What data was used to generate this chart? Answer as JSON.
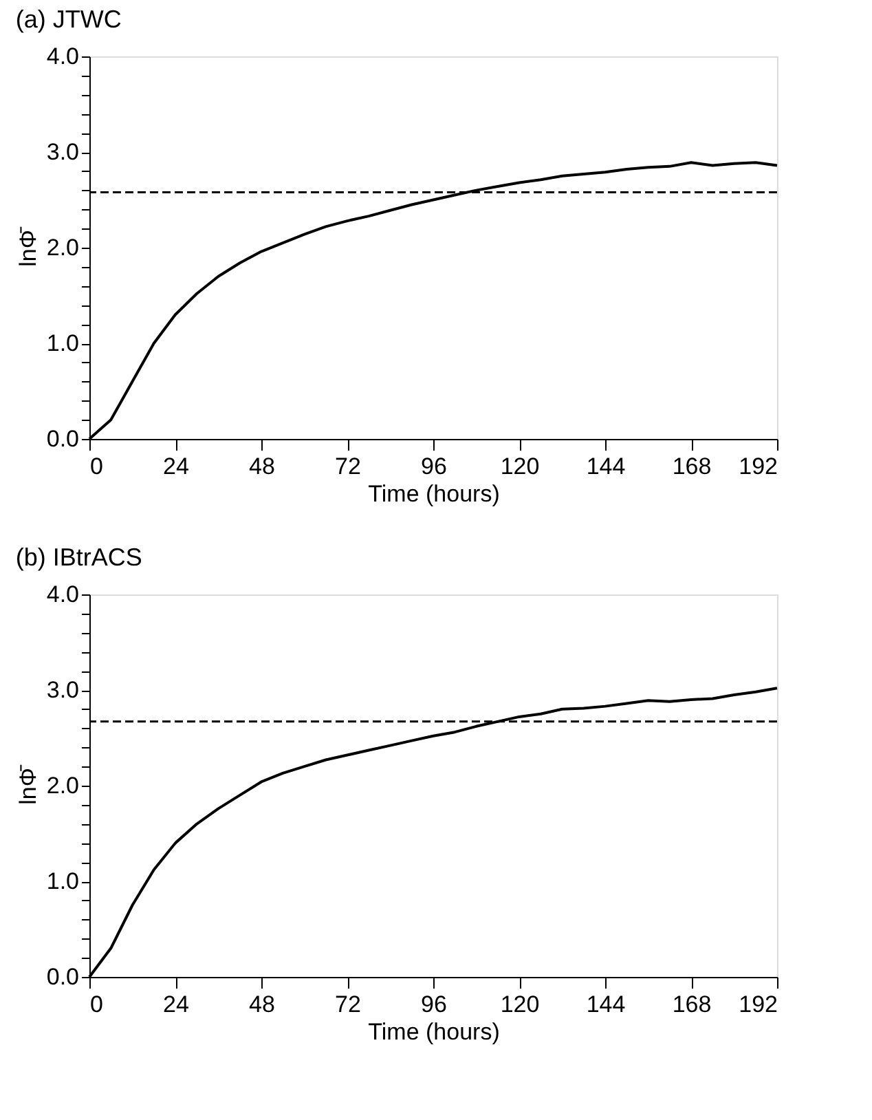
{
  "chart_data": [
    {
      "type": "line",
      "title": "(a) JTWC",
      "xlabel": "Time (hours)",
      "ylabel": "lnΦ̄",
      "xlim": [
        0,
        192
      ],
      "xticks": [
        0,
        24,
        48,
        72,
        96,
        120,
        144,
        168,
        192
      ],
      "ylim": [
        0,
        4
      ],
      "yticks": [
        {
          "value": 0,
          "label": "0.0"
        },
        {
          "value": 0.2,
          "label": null
        },
        {
          "value": 0.4,
          "label": null
        },
        {
          "value": 0.6,
          "label": null
        },
        {
          "value": 0.8,
          "label": null
        },
        {
          "value": 1,
          "label": "1.0"
        },
        {
          "value": 1.2,
          "label": null
        },
        {
          "value": 1.4,
          "label": null
        },
        {
          "value": 1.6,
          "label": null
        },
        {
          "value": 1.8,
          "label": null
        },
        {
          "value": 2,
          "label": "2.0"
        },
        {
          "value": 2.2,
          "label": null
        },
        {
          "value": 2.4,
          "label": null
        },
        {
          "value": 2.6,
          "label": null
        },
        {
          "value": 2.8,
          "label": null
        },
        {
          "value": 3,
          "label": "3.0"
        },
        {
          "value": 3.2,
          "label": null
        },
        {
          "value": 3.4,
          "label": null
        },
        {
          "value": 3.6,
          "label": null
        },
        {
          "value": 3.8,
          "label": null
        },
        {
          "value": 4,
          "label": "4.0"
        }
      ],
      "grid": false,
      "line_style": "solid",
      "x": [
        0,
        6,
        12,
        18,
        24,
        30,
        36,
        42,
        48,
        54,
        60,
        66,
        72,
        78,
        84,
        90,
        96,
        102,
        108,
        114,
        120,
        126,
        132,
        138,
        144,
        150,
        156,
        162,
        168,
        174,
        180,
        186,
        192
      ],
      "series": [
        {
          "color": "#000000",
          "values": [
            0,
            0.2,
            0.6,
            1.0,
            1.3,
            1.52,
            1.7,
            1.84,
            1.96,
            2.05,
            2.14,
            2.22,
            2.28,
            2.33,
            2.39,
            2.45,
            2.5,
            2.55,
            2.6,
            2.64,
            2.68,
            2.71,
            2.75,
            2.77,
            2.79,
            2.82,
            2.84,
            2.85,
            2.89,
            2.86,
            2.88,
            2.89,
            2.86
          ]
        }
      ],
      "ref_lines": [
        {
          "axis": "y",
          "value": 2.58,
          "color": "#000000",
          "line_style": "dashed"
        }
      ]
    },
    {
      "type": "line",
      "title": "(b) IBtrACS",
      "xlabel": "Time (hours)",
      "ylabel": "lnΦ̄",
      "xlim": [
        0,
        192
      ],
      "xticks": [
        0,
        24,
        48,
        72,
        96,
        120,
        144,
        168,
        192
      ],
      "ylim": [
        0,
        4
      ],
      "yticks": [
        {
          "value": 0,
          "label": "0.0"
        },
        {
          "value": 0.2,
          "label": null
        },
        {
          "value": 0.4,
          "label": null
        },
        {
          "value": 0.6,
          "label": null
        },
        {
          "value": 0.8,
          "label": null
        },
        {
          "value": 1,
          "label": "1.0"
        },
        {
          "value": 1.2,
          "label": null
        },
        {
          "value": 1.4,
          "label": null
        },
        {
          "value": 1.6,
          "label": null
        },
        {
          "value": 1.8,
          "label": null
        },
        {
          "value": 2,
          "label": "2.0"
        },
        {
          "value": 2.2,
          "label": null
        },
        {
          "value": 2.4,
          "label": null
        },
        {
          "value": 2.6,
          "label": null
        },
        {
          "value": 2.8,
          "label": null
        },
        {
          "value": 3,
          "label": "3.0"
        },
        {
          "value": 3.2,
          "label": null
        },
        {
          "value": 3.4,
          "label": null
        },
        {
          "value": 3.6,
          "label": null
        },
        {
          "value": 3.8,
          "label": null
        },
        {
          "value": 4,
          "label": "4.0"
        }
      ],
      "grid": false,
      "line_style": "solid",
      "x": [
        0,
        6,
        12,
        18,
        24,
        30,
        36,
        42,
        48,
        54,
        60,
        66,
        72,
        78,
        84,
        90,
        96,
        102,
        108,
        114,
        120,
        126,
        132,
        138,
        144,
        150,
        156,
        162,
        168,
        174,
        180,
        186,
        192
      ],
      "series": [
        {
          "color": "#000000",
          "values": [
            0,
            0.3,
            0.75,
            1.12,
            1.4,
            1.6,
            1.76,
            1.9,
            2.04,
            2.13,
            2.2,
            2.27,
            2.32,
            2.37,
            2.42,
            2.47,
            2.52,
            2.56,
            2.62,
            2.67,
            2.72,
            2.75,
            2.8,
            2.81,
            2.83,
            2.86,
            2.89,
            2.88,
            2.9,
            2.91,
            2.95,
            2.98,
            3.02
          ]
        }
      ],
      "ref_lines": [
        {
          "axis": "y",
          "value": 2.67,
          "color": "#000000",
          "line_style": "dashed"
        }
      ]
    }
  ]
}
